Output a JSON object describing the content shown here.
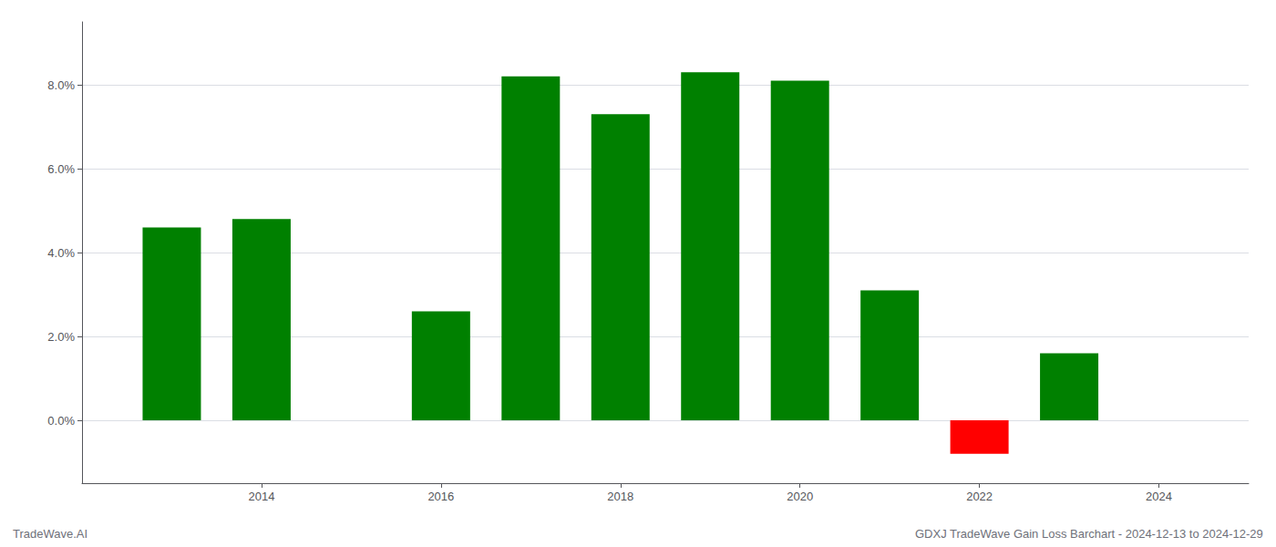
{
  "chart_data": {
    "type": "bar",
    "x": [
      2013,
      2014,
      2016,
      2017,
      2018,
      2019,
      2020,
      2021,
      2022,
      2023
    ],
    "values": [
      0.046,
      0.048,
      0.026,
      0.082,
      0.073,
      0.083,
      0.081,
      0.031,
      -0.008,
      0.016
    ],
    "colors": [
      "#008000",
      "#008000",
      "#008000",
      "#008000",
      "#008000",
      "#008000",
      "#008000",
      "#008000",
      "#ff0000",
      "#008000"
    ],
    "xlim": [
      2012,
      2025
    ],
    "xticks": [
      2014,
      2016,
      2018,
      2020,
      2022,
      2024
    ],
    "ylim": [
      -0.015,
      0.095
    ],
    "yticks": [
      {
        "value": 0.0,
        "label": "0.0%"
      },
      {
        "value": 0.02,
        "label": "2.0%"
      },
      {
        "value": 0.04,
        "label": "4.0%"
      },
      {
        "value": 0.06,
        "label": "6.0%"
      },
      {
        "value": 0.08,
        "label": "8.0%"
      }
    ],
    "grid": true,
    "annotations": [
      "TradeWave.AI",
      "GDXJ TradeWave Gain Loss Barchart - 2024-12-13 to 2024-12-29"
    ]
  }
}
